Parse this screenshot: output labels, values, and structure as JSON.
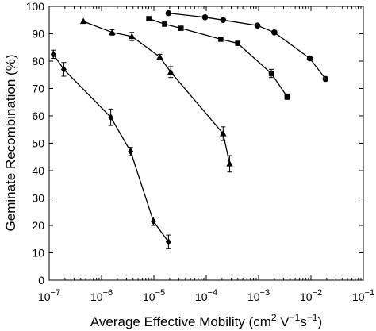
{
  "chart_data": {
    "type": "scatter",
    "title": "",
    "xlabel": "Average Effective Mobility (cm",
    "xlabel_unit_sup1": "2",
    "xlabel_unit_mid": " V",
    "xlabel_unit_sup2": "−1",
    "xlabel_unit_s": "s",
    "xlabel_unit_sup3": "−1",
    "xlabel_unit_end": ")",
    "ylabel": "Geminate Recombination (%)",
    "x_scale": "log",
    "xlim": [
      1e-07,
      0.1
    ],
    "ylim": [
      0,
      100
    ],
    "x_ticks": [
      {
        "value": 1e-07,
        "base": "10",
        "exp": "−7"
      },
      {
        "value": 1e-06,
        "base": "10",
        "exp": "−6"
      },
      {
        "value": 1e-05,
        "base": "10",
        "exp": "−5"
      },
      {
        "value": 0.0001,
        "base": "10",
        "exp": "−4"
      },
      {
        "value": 0.001,
        "base": "10",
        "exp": "−3"
      },
      {
        "value": 0.01,
        "base": "10",
        "exp": "−2"
      },
      {
        "value": 0.1,
        "base": "10",
        "exp": "−1"
      }
    ],
    "y_ticks": [
      "0",
      "10",
      "20",
      "30",
      "40",
      "50",
      "60",
      "70",
      "80",
      "90",
      "100"
    ],
    "grid": false,
    "legend": "none",
    "line_color": "#000000",
    "series": [
      {
        "marker": "diamond",
        "points": [
          {
            "x": 1.2e-07,
            "y": 82.5,
            "err": 1.5
          },
          {
            "x": 1.9e-07,
            "y": 77.0,
            "err": 2.5
          },
          {
            "x": 1.5e-06,
            "y": 59.5,
            "err": 3.0
          },
          {
            "x": 3.6e-06,
            "y": 47.0,
            "err": 1.5
          },
          {
            "x": 9.8e-06,
            "y": 21.5,
            "err": 1.5
          },
          {
            "x": 1.9e-05,
            "y": 14.0,
            "err": 2.5
          }
        ]
      },
      {
        "marker": "triangle",
        "points": [
          {
            "x": 4.5e-07,
            "y": 94.5,
            "err": 0
          },
          {
            "x": 1.6e-06,
            "y": 90.5,
            "err": 1.0
          },
          {
            "x": 3.8e-06,
            "y": 89.0,
            "err": 1.5
          },
          {
            "x": 1.3e-05,
            "y": 81.5,
            "err": 1.0
          },
          {
            "x": 2.1e-05,
            "y": 76.0,
            "err": 2.0
          },
          {
            "x": 0.00021,
            "y": 53.5,
            "err": 2.5
          },
          {
            "x": 0.00028,
            "y": 42.5,
            "err": 3.0
          }
        ]
      },
      {
        "marker": "square",
        "points": [
          {
            "x": 8e-06,
            "y": 95.5,
            "err": 0
          },
          {
            "x": 1.6e-05,
            "y": 93.5,
            "err": 0
          },
          {
            "x": 3.3e-05,
            "y": 92.0,
            "err": 0
          },
          {
            "x": 0.00019,
            "y": 88.0,
            "err": 0
          },
          {
            "x": 0.0004,
            "y": 86.5,
            "err": 0
          },
          {
            "x": 0.00175,
            "y": 75.5,
            "err": 1.5
          },
          {
            "x": 0.0035,
            "y": 67.0,
            "err": 1.0
          }
        ]
      },
      {
        "marker": "circle",
        "points": [
          {
            "x": 1.9e-05,
            "y": 97.5,
            "err": 0
          },
          {
            "x": 9.5e-05,
            "y": 96.0,
            "err": 0
          },
          {
            "x": 0.00021,
            "y": 95.0,
            "err": 0
          },
          {
            "x": 0.00095,
            "y": 93.0,
            "err": 0
          },
          {
            "x": 0.002,
            "y": 90.5,
            "err": 0
          },
          {
            "x": 0.0095,
            "y": 81.0,
            "err": 0
          },
          {
            "x": 0.019,
            "y": 73.5,
            "err": 0
          }
        ]
      }
    ]
  }
}
